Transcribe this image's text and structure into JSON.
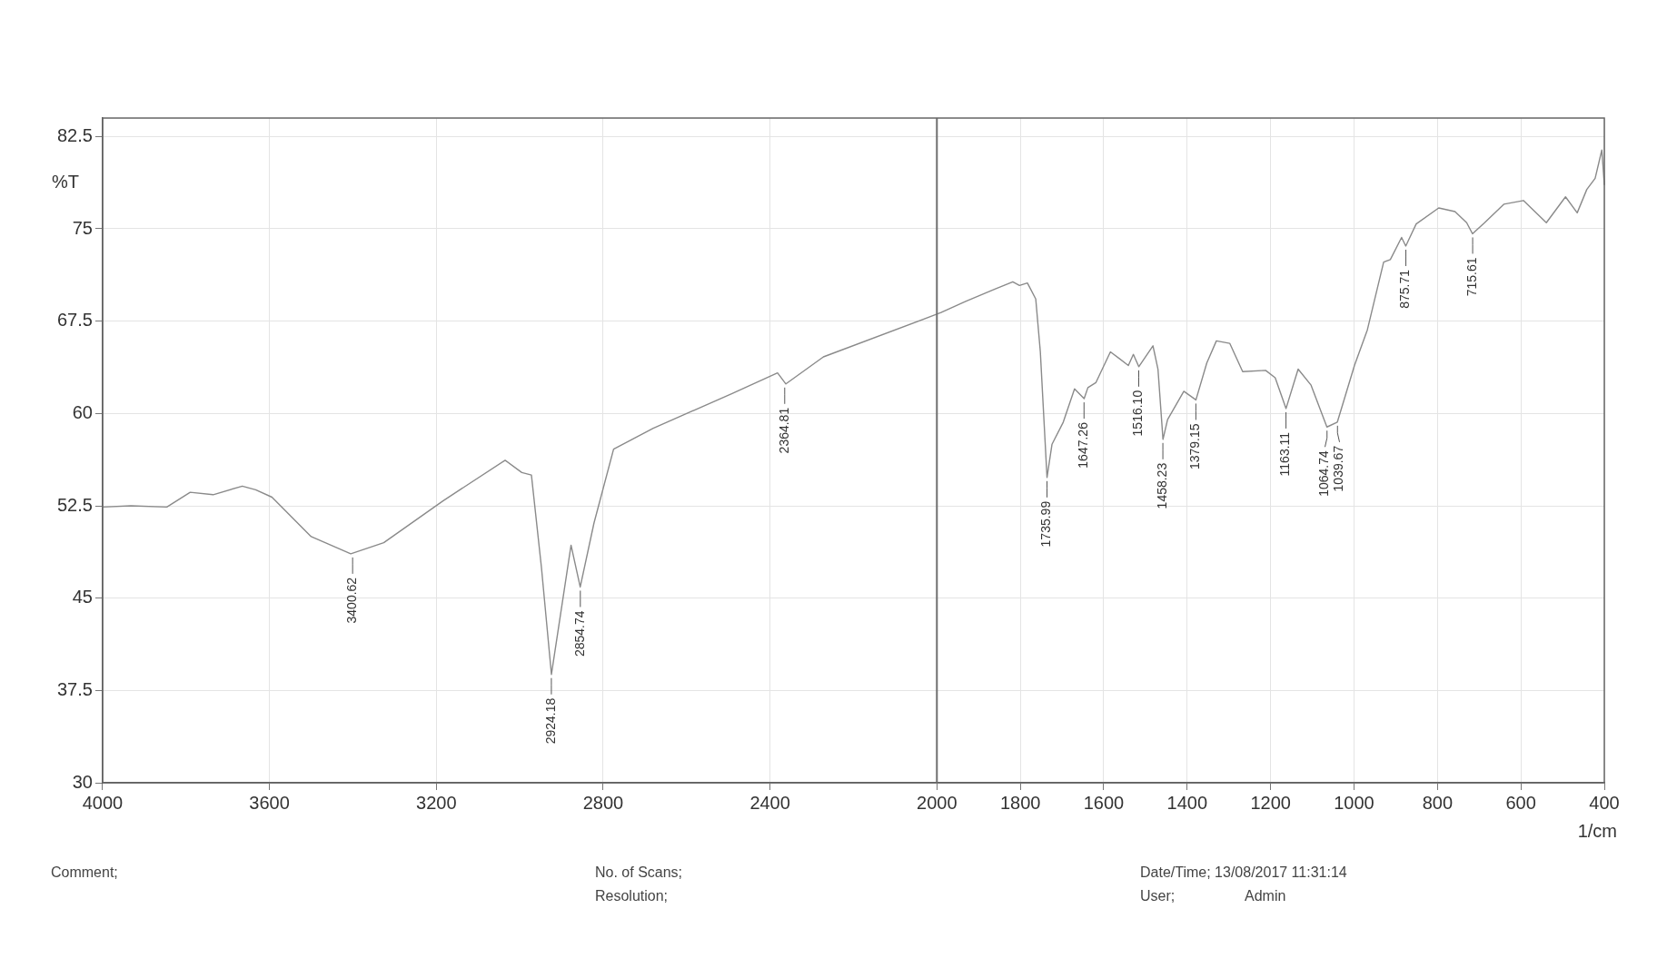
{
  "chart_data": {
    "type": "line",
    "ylabel": "%T",
    "xlabel": "1/cm",
    "x": [
      4000,
      3932,
      3846,
      3790,
      3735,
      3665,
      3633,
      3594,
      3500,
      3405,
      3326,
      3184,
      3035,
      2995,
      2972,
      2948,
      2924,
      2877,
      2855,
      2822,
      2775,
      2680,
      2492,
      2382,
      2362,
      2272,
      1990,
      1931,
      1861,
      1818,
      1802,
      1783,
      1763,
      1752,
      1736,
      1724,
      1697,
      1670,
      1647,
      1638,
      1619,
      1584,
      1564,
      1541,
      1529,
      1516,
      1482,
      1470,
      1458,
      1447,
      1408,
      1379,
      1353,
      1330,
      1298,
      1267,
      1212,
      1189,
      1163,
      1134,
      1103,
      1065,
      1040,
      999,
      968,
      929,
      913,
      886,
      876,
      851,
      797,
      758,
      730,
      716,
      687,
      641,
      594,
      539,
      493,
      465,
      442,
      422,
      406,
      400
    ],
    "series": [
      {
        "color": "#8a8a8a",
        "values": [
          52.4,
          52.5,
          52.4,
          53.6,
          53.4,
          54.1,
          53.8,
          53.2,
          50.0,
          48.6,
          49.5,
          52.9,
          56.2,
          55.2,
          55.0,
          47.5,
          38.8,
          49.3,
          45.9,
          51.1,
          57.1,
          58.8,
          61.6,
          63.3,
          62.4,
          64.6,
          68.2,
          69.1,
          70.1,
          70.7,
          70.4,
          70.6,
          69.3,
          65.0,
          54.8,
          57.5,
          59.3,
          62.0,
          61.2,
          62.1,
          62.5,
          65.0,
          64.5,
          63.9,
          64.8,
          63.8,
          65.5,
          63.6,
          57.9,
          59.5,
          61.8,
          61.1,
          64.1,
          65.9,
          65.7,
          63.4,
          63.5,
          62.9,
          60.4,
          63.6,
          62.3,
          58.9,
          59.3,
          63.9,
          66.8,
          72.3,
          72.5,
          74.3,
          73.6,
          75.4,
          76.7,
          76.4,
          75.5,
          74.6,
          75.5,
          77.0,
          77.3,
          75.5,
          77.6,
          76.3,
          78.2,
          79.1,
          81.4,
          78.6
        ]
      }
    ],
    "xlim": [
      4000,
      400
    ],
    "xticks": [
      4000,
      3600,
      3200,
      2800,
      2400,
      2000,
      1800,
      1600,
      1400,
      1200,
      1000,
      800,
      600,
      400
    ],
    "ylim": [
      30,
      84
    ],
    "yticks": [
      30,
      37.5,
      45,
      52.5,
      60,
      67.5,
      75,
      82.5
    ],
    "grid": true,
    "line_style": "solid",
    "marker": "none",
    "legend": false,
    "ref_lines": [
      {
        "axis": "x",
        "value": 2000,
        "color": "#6e6e6e"
      }
    ],
    "annotations": [
      {
        "text": "3400.62",
        "x": 3400.62,
        "y": 48.6
      },
      {
        "text": "2924.18",
        "x": 2924.18,
        "y": 38.8
      },
      {
        "text": "2854.74",
        "x": 2854.74,
        "y": 45.9
      },
      {
        "text": "2364.81",
        "x": 2364.81,
        "y": 62.4
      },
      {
        "text": "1735.99",
        "x": 1735.99,
        "y": 54.8
      },
      {
        "text": "1647.26",
        "x": 1647.26,
        "y": 61.2
      },
      {
        "text": "1516.10",
        "x": 1516.1,
        "y": 63.8
      },
      {
        "text": "1458.23",
        "x": 1458.23,
        "y": 57.9
      },
      {
        "text": "1379.15",
        "x": 1379.15,
        "y": 61.1
      },
      {
        "text": "1163.11",
        "x": 1163.11,
        "y": 60.4
      },
      {
        "text": "1064.74",
        "x": 1064.74,
        "y": 58.9
      },
      {
        "text": "1039.67",
        "x": 1039.67,
        "y": 59.3
      },
      {
        "text": "875.71",
        "x": 875.71,
        "y": 73.6
      },
      {
        "text": "715.61",
        "x": 715.61,
        "y": 74.6
      },
      "Comment;",
      "No. of Scans;",
      "Resolution;",
      "Date/Time; 13/08/2017 11:31:14",
      "User;",
      "Admin"
    ]
  }
}
